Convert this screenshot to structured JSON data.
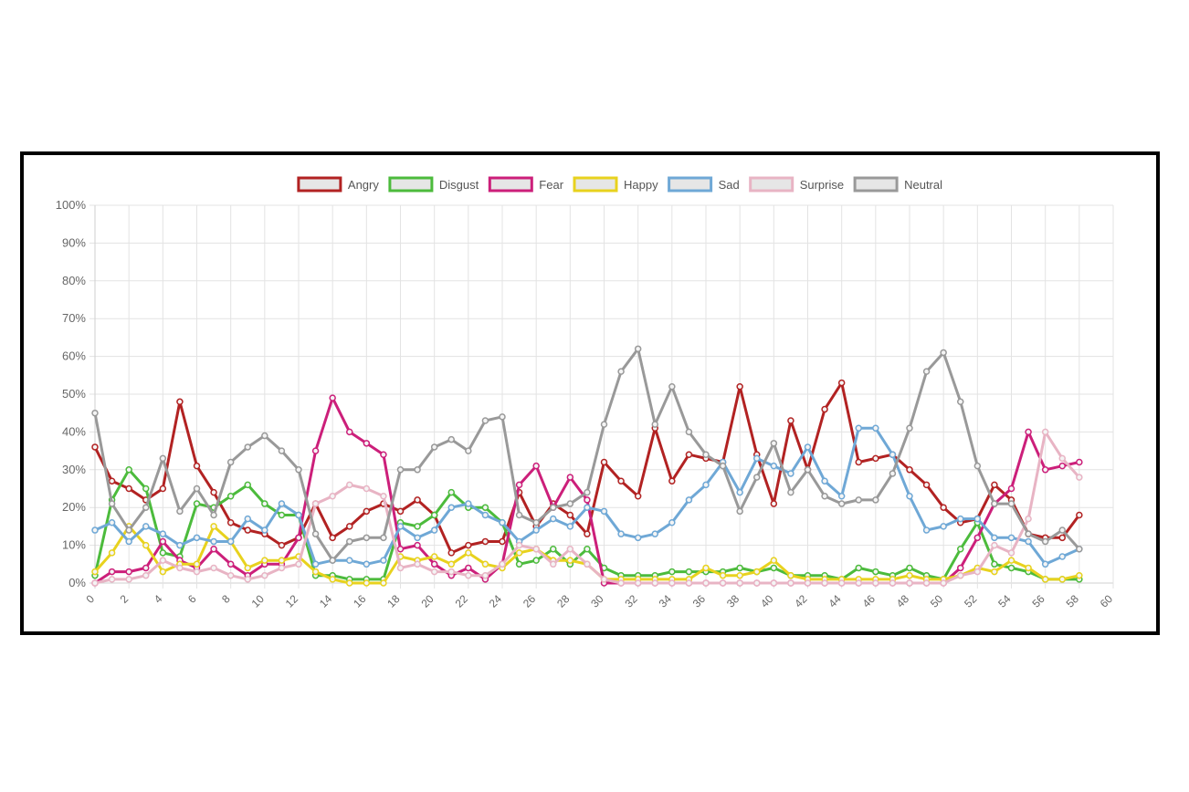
{
  "chart_data": {
    "type": "line",
    "title": "",
    "xlabel": "",
    "ylabel": "",
    "x": [
      0,
      1,
      2,
      3,
      4,
      5,
      6,
      7,
      8,
      9,
      10,
      11,
      12,
      13,
      14,
      15,
      16,
      17,
      18,
      19,
      20,
      21,
      22,
      23,
      24,
      25,
      26,
      27,
      28,
      29,
      30,
      31,
      32,
      33,
      34,
      35,
      36,
      37,
      38,
      39,
      40,
      41,
      42,
      43,
      44,
      45,
      46,
      47,
      48,
      49,
      50,
      51,
      52,
      53,
      54,
      55,
      56,
      57,
      58
    ],
    "xlim": [
      0,
      60
    ],
    "ylim": [
      0,
      100
    ],
    "x_ticks": [
      "0",
      "2",
      "4",
      "6",
      "8",
      "10",
      "12",
      "14",
      "16",
      "18",
      "20",
      "22",
      "24",
      "26",
      "28",
      "30",
      "32",
      "34",
      "36",
      "38",
      "40",
      "42",
      "44",
      "46",
      "48",
      "50",
      "52",
      "54",
      "56",
      "58",
      "60"
    ],
    "y_ticks": [
      "0%",
      "10%",
      "20%",
      "30%",
      "40%",
      "50%",
      "60%",
      "70%",
      "80%",
      "90%",
      "100%"
    ],
    "grid": true,
    "legend_position": "top-center",
    "series": [
      {
        "name": "Angry",
        "color": "#b22222",
        "values": [
          36,
          27,
          25,
          22,
          25,
          48,
          31,
          24,
          16,
          14,
          13,
          10,
          12,
          21,
          12,
          15,
          19,
          21,
          19,
          22,
          18,
          8,
          10,
          11,
          11,
          24,
          15,
          21,
          18,
          13,
          32,
          27,
          23,
          41,
          27,
          34,
          33,
          32,
          52,
          34,
          21,
          43,
          30,
          46,
          53,
          32,
          33,
          34,
          30,
          26,
          20,
          16,
          17,
          26,
          22,
          13,
          12,
          12,
          18
        ]
      },
      {
        "name": "Disgust",
        "color": "#4cbb3c",
        "values": [
          2,
          22,
          30,
          25,
          8,
          7,
          21,
          20,
          23,
          26,
          21,
          18,
          18,
          2,
          2,
          1,
          1,
          1,
          16,
          15,
          18,
          24,
          20,
          20,
          16,
          5,
          6,
          9,
          5,
          9,
          4,
          2,
          2,
          2,
          3,
          3,
          3,
          3,
          4,
          3,
          4,
          2,
          2,
          2,
          1,
          4,
          3,
          2,
          4,
          2,
          1,
          9,
          16,
          5,
          4,
          3,
          1,
          1,
          1
        ]
      },
      {
        "name": "Fear",
        "color": "#cc1f7a",
        "values": [
          0,
          3,
          3,
          4,
          11,
          6,
          4,
          9,
          5,
          2,
          5,
          5,
          12,
          35,
          49,
          40,
          37,
          34,
          9,
          10,
          5,
          2,
          4,
          1,
          5,
          26,
          31,
          20,
          28,
          22,
          0,
          0,
          0,
          0,
          0,
          0,
          0,
          0,
          0,
          0,
          0,
          0,
          0,
          0,
          0,
          0,
          0,
          0,
          0,
          0,
          0,
          4,
          12,
          21,
          25,
          40,
          30,
          31,
          32
        ]
      },
      {
        "name": "Happy",
        "color": "#e8d21e",
        "values": [
          3,
          8,
          15,
          10,
          3,
          5,
          5,
          15,
          11,
          4,
          6,
          6,
          7,
          3,
          1,
          0,
          0,
          0,
          7,
          6,
          7,
          5,
          8,
          5,
          4,
          8,
          9,
          6,
          6,
          5,
          1,
          1,
          1,
          1,
          1,
          1,
          4,
          2,
          2,
          3,
          6,
          2,
          1,
          1,
          1,
          1,
          1,
          1,
          2,
          1,
          1,
          2,
          4,
          3,
          6,
          4,
          1,
          1,
          2
        ]
      },
      {
        "name": "Sad",
        "color": "#6fa8d6",
        "values": [
          14,
          16,
          11,
          15,
          13,
          10,
          12,
          11,
          11,
          17,
          14,
          21,
          18,
          5,
          6,
          6,
          5,
          6,
          15,
          12,
          14,
          20,
          21,
          18,
          16,
          11,
          14,
          17,
          15,
          20,
          19,
          13,
          12,
          13,
          16,
          22,
          26,
          32,
          24,
          33,
          31,
          29,
          36,
          27,
          23,
          41,
          41,
          34,
          23,
          14,
          15,
          17,
          17,
          12,
          12,
          11,
          5,
          7,
          9
        ]
      },
      {
        "name": "Surprise",
        "color": "#e8b4c4",
        "values": [
          0,
          1,
          1,
          2,
          6,
          4,
          3,
          4,
          2,
          1,
          2,
          4,
          5,
          21,
          23,
          26,
          25,
          23,
          4,
          5,
          3,
          3,
          2,
          2,
          5,
          10,
          9,
          5,
          9,
          5,
          1,
          0,
          0,
          0,
          0,
          0,
          0,
          0,
          0,
          0,
          0,
          0,
          0,
          0,
          0,
          0,
          0,
          0,
          0,
          0,
          0,
          2,
          3,
          10,
          8,
          17,
          40,
          33,
          28
        ]
      },
      {
        "name": "Neutral",
        "color": "#999999",
        "values": [
          45,
          21,
          14,
          20,
          33,
          19,
          25,
          18,
          32,
          36,
          39,
          35,
          30,
          13,
          6,
          11,
          12,
          12,
          30,
          30,
          36,
          38,
          35,
          43,
          44,
          18,
          16,
          20,
          21,
          24,
          42,
          56,
          62,
          42,
          52,
          40,
          34,
          31,
          19,
          28,
          37,
          24,
          30,
          23,
          21,
          22,
          22,
          29,
          41,
          56,
          61,
          48,
          31,
          21,
          21,
          13,
          11,
          14,
          9
        ]
      }
    ]
  }
}
